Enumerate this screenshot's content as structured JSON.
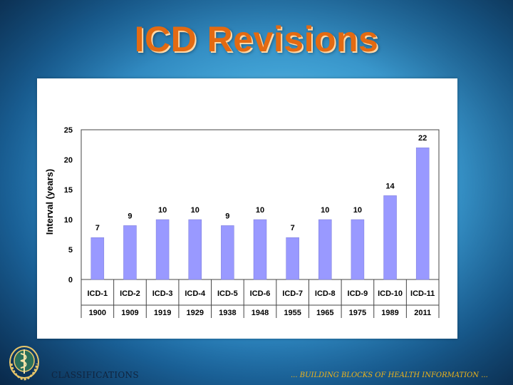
{
  "slide": {
    "title": "ICD Revisions",
    "footer_left": "CLASSIFICATIONS",
    "footer_right": "... BUILDING BLOCKS OF HEALTH INFORMATION ...",
    "logo_icon": "who-emblem-icon"
  },
  "colors": {
    "bar_fill": "#9999ff",
    "title_text": "#e36a12",
    "footer_right_text": "#f0b419"
  },
  "chart_data": {
    "type": "bar",
    "title": "",
    "xlabel": "",
    "ylabel": "Interval (years)",
    "ylim": [
      0,
      25
    ],
    "yticks": [
      0,
      5,
      10,
      15,
      20,
      25
    ],
    "grid": false,
    "categories": [
      "ICD-1",
      "ICD-2",
      "ICD-3",
      "ICD-4",
      "ICD-5",
      "ICD-6",
      "ICD-7",
      "ICD-8",
      "ICD-9",
      "ICD-10",
      "ICD-11"
    ],
    "years": [
      "1900",
      "1909",
      "1919",
      "1929",
      "1938",
      "1948",
      "1955",
      "1965",
      "1975",
      "1989",
      "2011"
    ],
    "values": [
      7,
      9,
      10,
      10,
      9,
      10,
      7,
      10,
      10,
      14,
      22
    ]
  }
}
